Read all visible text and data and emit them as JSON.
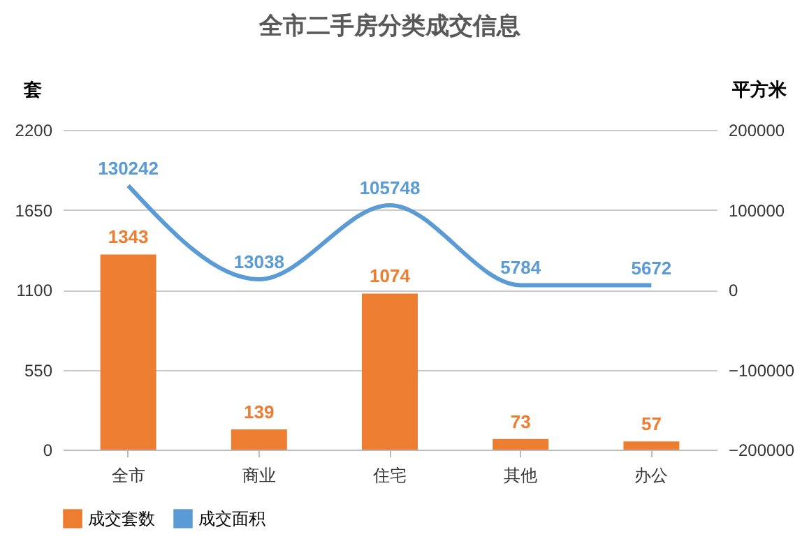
{
  "chart_data": {
    "type": "bar",
    "title": "全市二手房分类成交信息",
    "ylabel": "套",
    "y2label": "平方米",
    "categories": [
      "全市",
      "商业",
      "住宅",
      "其他",
      "办公"
    ],
    "series": [
      {
        "name": "成交套数",
        "color": "#ed7d31",
        "values": [
          1343,
          139,
          1074,
          73,
          57
        ]
      },
      {
        "name": "成交面积",
        "type": "line",
        "axis": "y2",
        "color": "#5b9bd5",
        "values": [
          130242,
          13038,
          105748,
          5784,
          5672
        ]
      }
    ],
    "ylim": [
      0,
      2200
    ],
    "yticks": [
      0,
      550,
      1100,
      1650,
      2200
    ],
    "y2lim": [
      -200000,
      200000
    ],
    "y2ticks": [
      -200000,
      -100000,
      0,
      100000,
      200000
    ],
    "grid": "y",
    "legend": "bottom",
    "data_labels": true,
    "line_style": "solid",
    "marker": "none"
  }
}
